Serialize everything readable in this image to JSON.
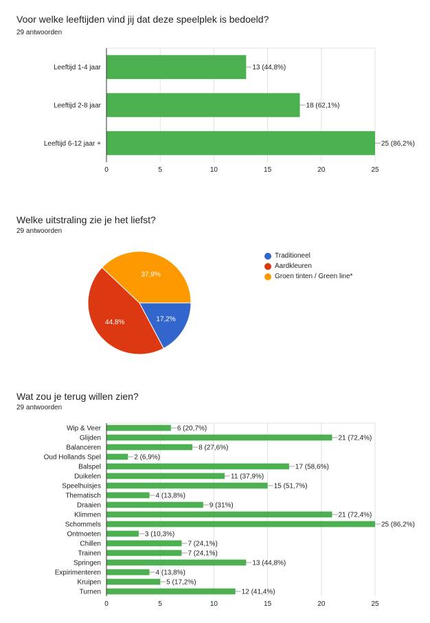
{
  "sections": [
    {
      "title": "Voor welke leeftijden vind jij dat deze speelplek is bedoeld?",
      "responses": "29 antwoorden"
    },
    {
      "title": "Welke uitstraling zie je het liefst?",
      "responses": "29 antwoorden"
    },
    {
      "title": "Wat zou je terug willen zien?",
      "responses": "29 antwoorden"
    }
  ],
  "colors": {
    "bar": "#4caf50",
    "grid": "#e0e0e0",
    "axis": "#333333",
    "text": "#202124"
  },
  "chart_data": [
    {
      "type": "bar",
      "orientation": "horizontal",
      "title": "Voor welke leeftijden vind jij dat deze speelplek is bedoeld?",
      "categories": [
        "Leeftijd 1-4 jaar",
        "Leeftijd 2-8 jaar",
        "Leeftijd 6-12 jaar +"
      ],
      "values": [
        13,
        18,
        25
      ],
      "data_labels": [
        "13 (44,8%)",
        "18 (62,1%)",
        "25 (86,2%)"
      ],
      "xlim": [
        0,
        25
      ],
      "xticks": [
        "0",
        "5",
        "10",
        "15",
        "20",
        "25"
      ],
      "grid": true
    },
    {
      "type": "pie",
      "title": "Welke uitstraling zie je het liefst?",
      "categories": [
        "Traditioneel",
        "Aardkleuren",
        "Groen tinten / Green line*"
      ],
      "values": [
        17.2,
        44.8,
        37.9
      ],
      "data_labels": [
        "17,2%",
        "44,8%",
        "37,9%"
      ],
      "colors": [
        "#3366cc",
        "#dc3912",
        "#ff9900"
      ],
      "legend": "right"
    },
    {
      "type": "bar",
      "orientation": "horizontal",
      "title": "Wat zou je terug willen zien?",
      "categories": [
        "Wip & Veer",
        "Glijden",
        "Balanceren",
        "Oud Hollands Spel",
        "Balspel",
        "Duikelen",
        "Speelhuisjes",
        "Thematisch",
        "Draaien",
        "Klimmen",
        "Schommels",
        "Ontmoeten",
        "Chillen",
        "Trainen",
        "Springen",
        "Expirimenteren",
        "Kruipen",
        "Turnen"
      ],
      "values": [
        6,
        21,
        8,
        2,
        17,
        11,
        15,
        4,
        9,
        21,
        25,
        3,
        7,
        7,
        13,
        4,
        5,
        12
      ],
      "data_labels": [
        "6 (20,7%)",
        "21 (72,4%)",
        "8 (27,6%)",
        "2 (6,9%)",
        "17 (58,6%)",
        "11 (37,9%)",
        "15 (51,7%)",
        "4 (13,8%)",
        "9 (31%)",
        "21 (72,4%)",
        "25 (86,2%)",
        "3 (10,3%)",
        "7 (24,1%)",
        "7 (24,1%)",
        "13 (44,8%)",
        "4 (13,8%)",
        "5 (17,2%)",
        "12 (41,4%)"
      ],
      "xlim": [
        0,
        25
      ],
      "xticks": [
        "0",
        "5",
        "10",
        "15",
        "20",
        "25"
      ],
      "grid": true
    }
  ]
}
